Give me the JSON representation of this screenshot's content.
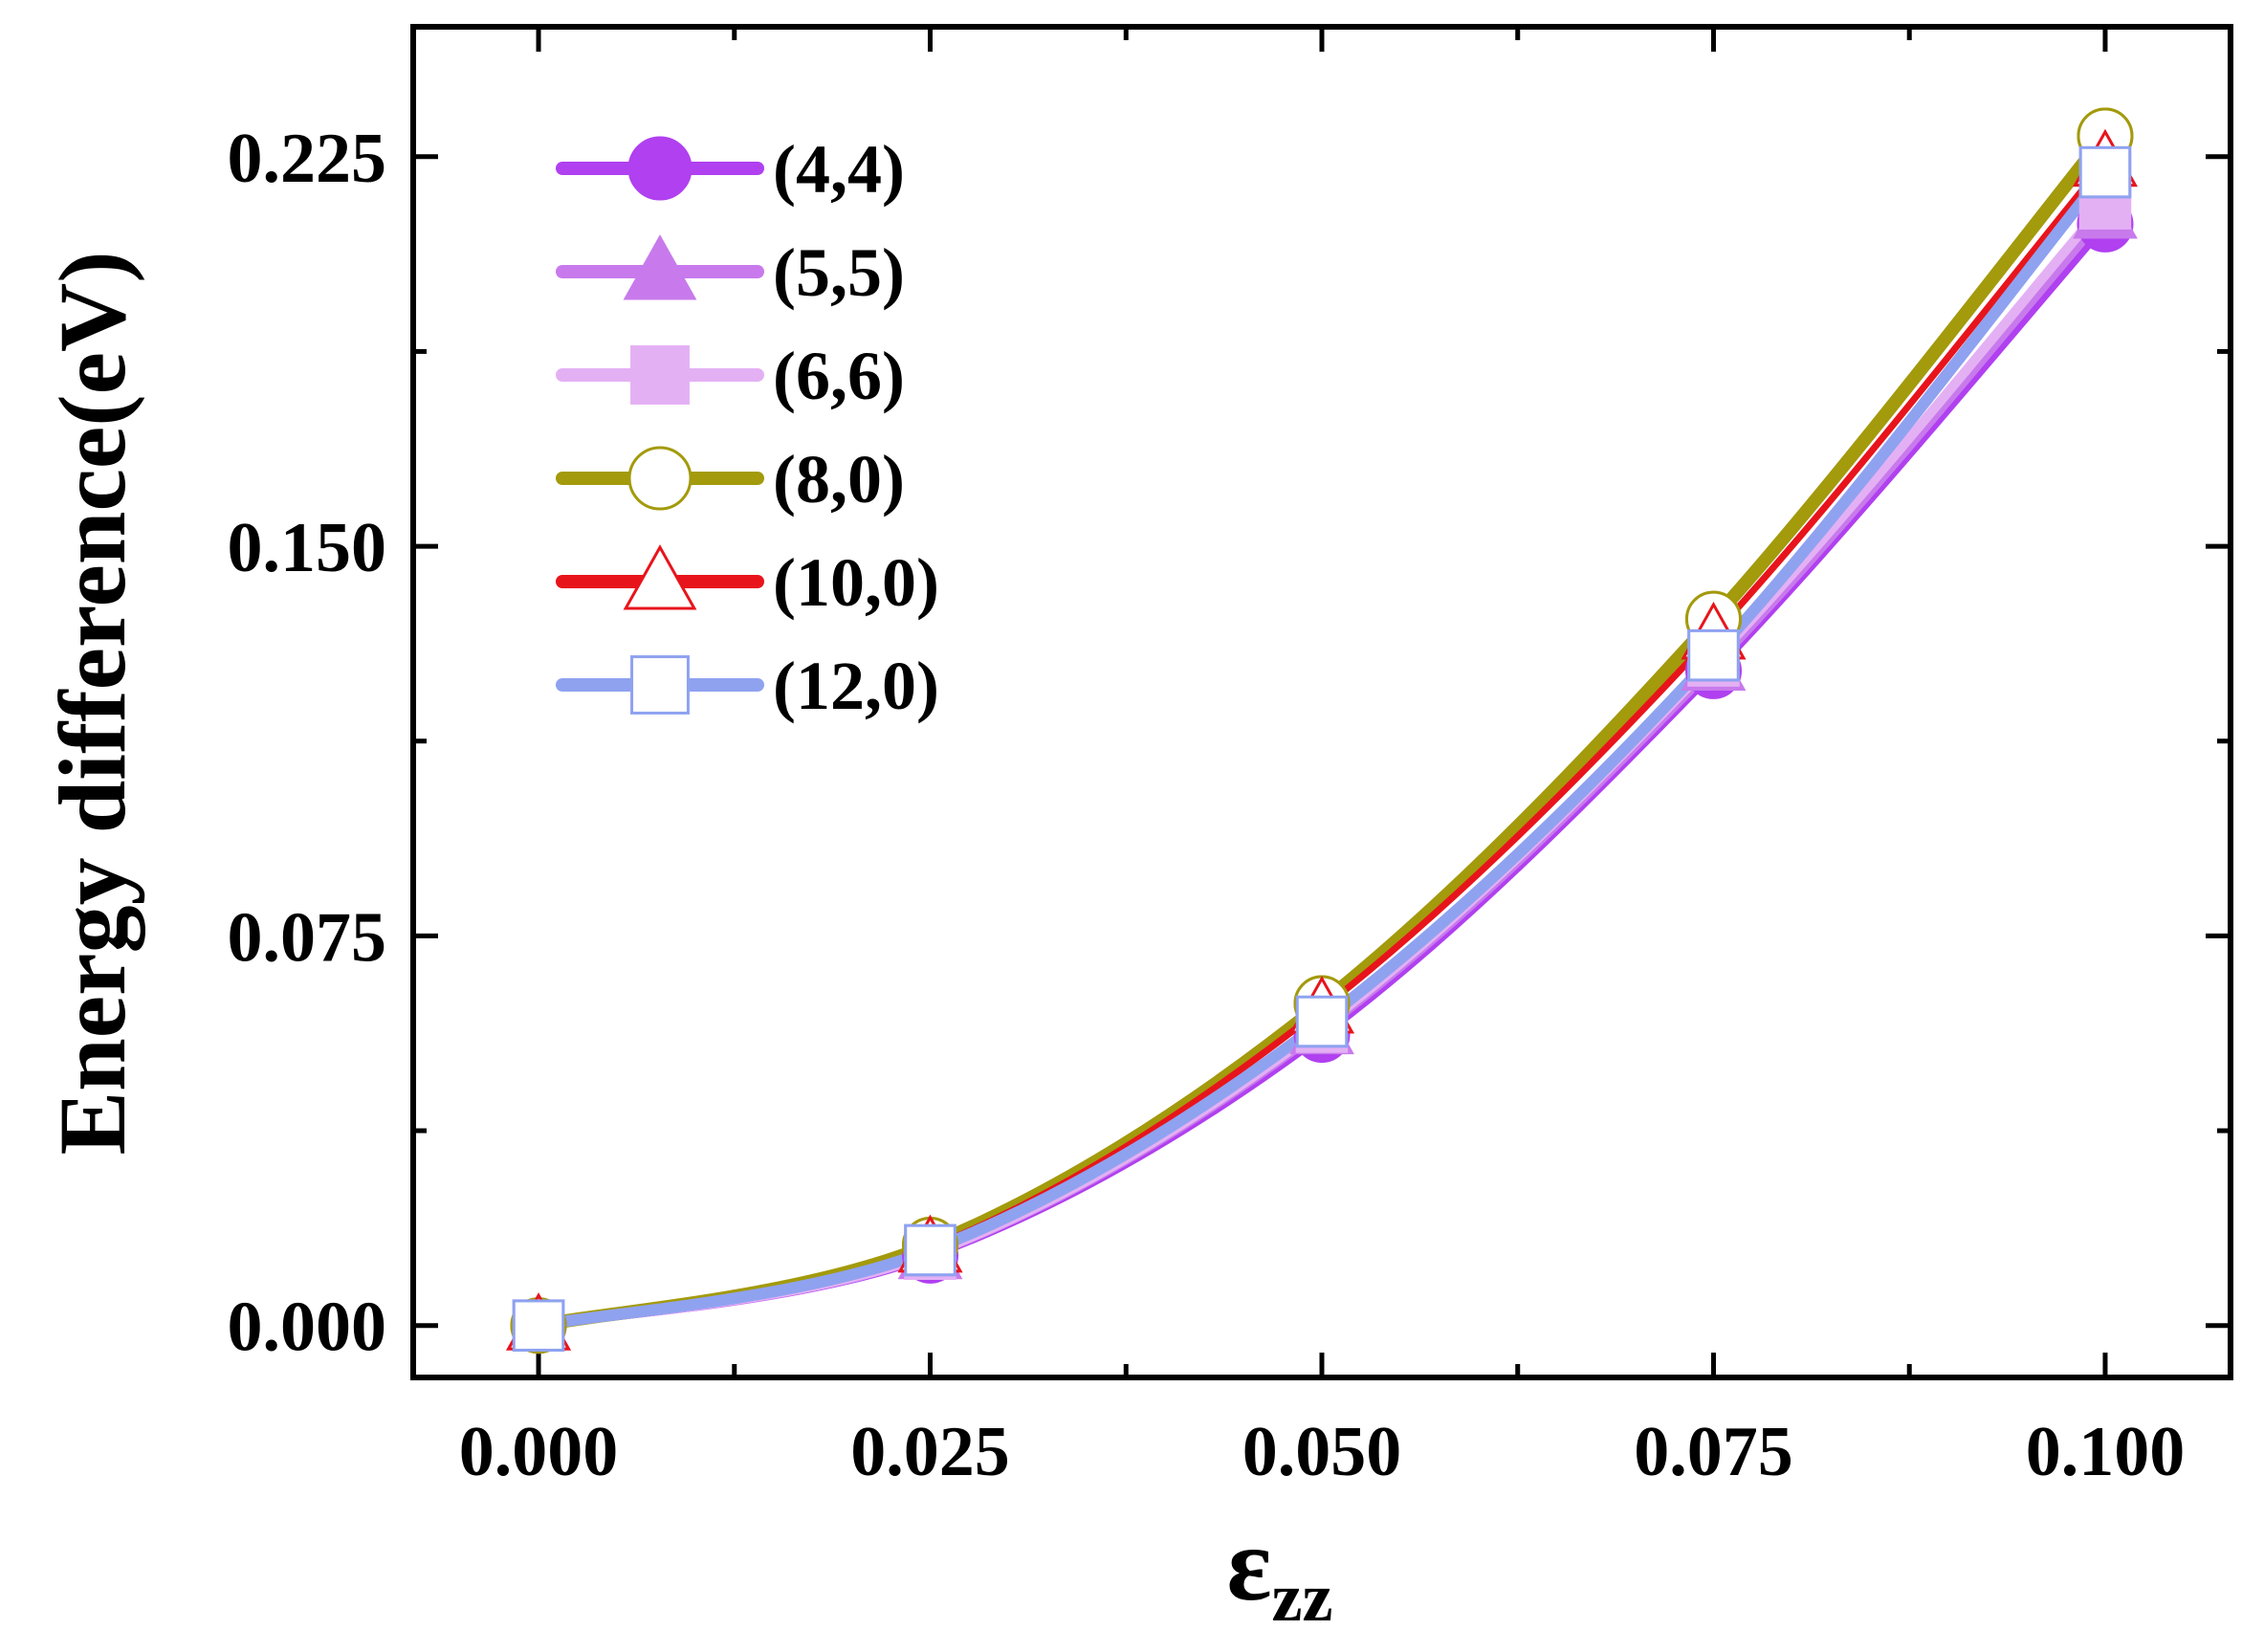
{
  "chart_data": {
    "type": "line",
    "title": "",
    "xlabel": "ε",
    "xlabel_sub": "zz",
    "ylabel": "Energy difference(eV)",
    "x": [
      0.0,
      0.025,
      0.05,
      0.075,
      0.1
    ],
    "xlim": [
      -0.008,
      0.108
    ],
    "ylim": [
      -0.01,
      0.25
    ],
    "xticks": [
      "0.000",
      "0.025",
      "0.050",
      "0.075",
      "0.100"
    ],
    "xtick_values": [
      0.0,
      0.025,
      0.05,
      0.075,
      0.1
    ],
    "yticks": [
      "0.000",
      "0.075",
      "0.150",
      "0.225"
    ],
    "ytick_values": [
      0.0,
      0.075,
      0.15,
      0.225
    ],
    "legend_position": "top-left",
    "series": [
      {
        "name": "(4,4)",
        "values": [
          0.0,
          0.0135,
          0.056,
          0.126,
          0.212
        ],
        "color": "#b040f0",
        "marker": "circle",
        "filled": true
      },
      {
        "name": "(5,5)",
        "values": [
          0.0,
          0.0137,
          0.057,
          0.127,
          0.214
        ],
        "color": "#c87aec",
        "marker": "triangle",
        "filled": true
      },
      {
        "name": "(6,6)",
        "values": [
          0.0,
          0.0138,
          0.0575,
          0.128,
          0.216
        ],
        "color": "#e4b0f4",
        "marker": "square",
        "filled": true
      },
      {
        "name": "(8,0)",
        "values": [
          0.0,
          0.0155,
          0.062,
          0.136,
          0.229
        ],
        "color": "#a39a0c",
        "marker": "circle",
        "filled": false
      },
      {
        "name": "(10,0)",
        "values": [
          0.0,
          0.015,
          0.061,
          0.133,
          0.224
        ],
        "color": "#e8141c",
        "marker": "triangle",
        "filled": false
      },
      {
        "name": "(12,0)",
        "values": [
          0.0,
          0.0145,
          0.0585,
          0.129,
          0.222
        ],
        "color": "#8fa2f0",
        "marker": "square",
        "filled": false
      }
    ]
  }
}
